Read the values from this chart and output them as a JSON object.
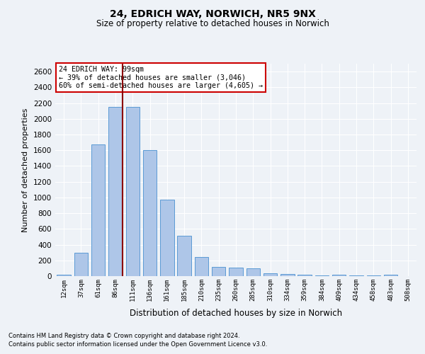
{
  "title1": "24, EDRICH WAY, NORWICH, NR5 9NX",
  "title2": "Size of property relative to detached houses in Norwich",
  "xlabel": "Distribution of detached houses by size in Norwich",
  "ylabel": "Number of detached properties",
  "categories": [
    "12sqm",
    "37sqm",
    "61sqm",
    "86sqm",
    "111sqm",
    "136sqm",
    "161sqm",
    "185sqm",
    "210sqm",
    "235sqm",
    "260sqm",
    "285sqm",
    "310sqm",
    "334sqm",
    "359sqm",
    "384sqm",
    "409sqm",
    "434sqm",
    "458sqm",
    "483sqm",
    "508sqm"
  ],
  "values": [
    20,
    300,
    1670,
    2150,
    2150,
    1600,
    970,
    510,
    245,
    120,
    110,
    95,
    40,
    30,
    15,
    10,
    20,
    10,
    10,
    20,
    0
  ],
  "bar_color": "#aec6e8",
  "bar_edge_color": "#5b9bd5",
  "background_color": "#eef2f7",
  "vline_color": "#8b0000",
  "annotation_text": "24 EDRICH WAY: 99sqm\n← 39% of detached houses are smaller (3,046)\n60% of semi-detached houses are larger (4,605) →",
  "annotation_box_color": "white",
  "annotation_box_edge": "#cc0000",
  "ylim": [
    0,
    2700
  ],
  "yticks": [
    0,
    200,
    400,
    600,
    800,
    1000,
    1200,
    1400,
    1600,
    1800,
    2000,
    2200,
    2400,
    2600
  ],
  "footnote1": "Contains HM Land Registry data © Crown copyright and database right 2024.",
  "footnote2": "Contains public sector information licensed under the Open Government Licence v3.0."
}
